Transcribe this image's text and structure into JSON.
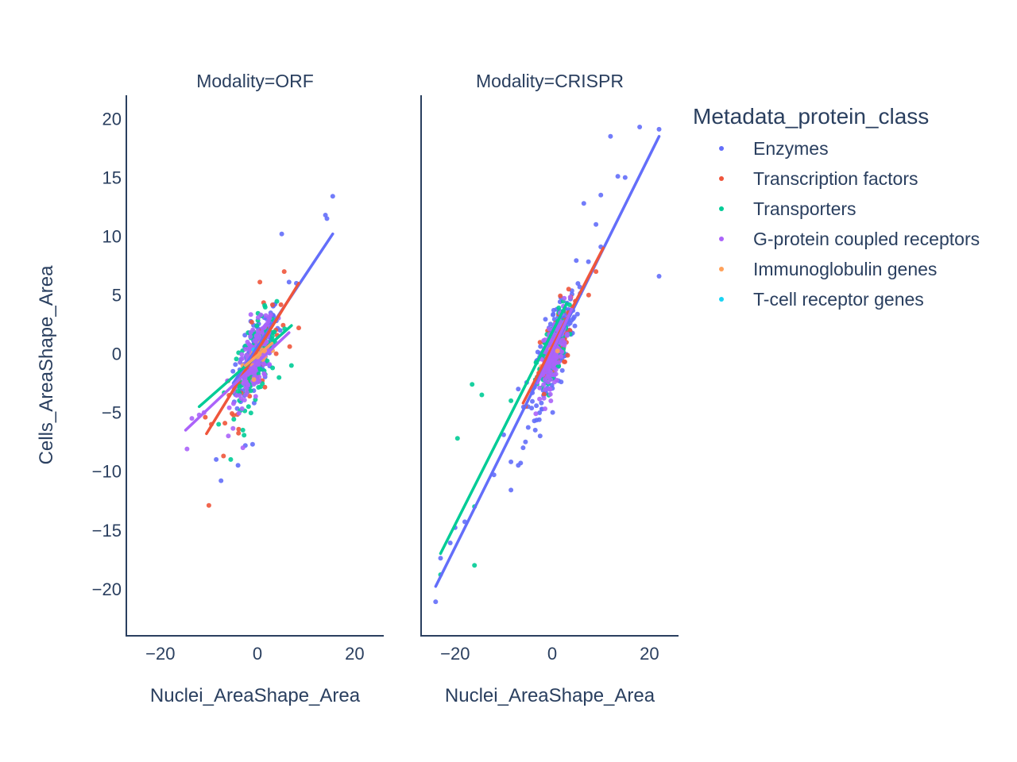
{
  "chart_data": {
    "type": "scatter",
    "ylabel": "Cells_AreaShape_Area",
    "xlabel": "Nuclei_AreaShape_Area",
    "x_ticks": [
      -20,
      0,
      20
    ],
    "y_ticks": [
      20,
      15,
      10,
      5,
      0,
      -5,
      -10,
      -15,
      -20
    ],
    "x_tick_labels": [
      "−20",
      "0",
      "20"
    ],
    "y_tick_labels": [
      "20",
      "15",
      "10",
      "5",
      "0",
      "−5",
      "−10",
      "−15",
      "−20"
    ],
    "xlim": [
      -27,
      26
    ],
    "ylim": [
      -24,
      22
    ],
    "grid": false,
    "legend": {
      "title": "Metadata_protein_class",
      "placement": "right",
      "entries": [
        "Enzymes",
        "Transcription factors",
        "Transporters",
        "G-protein coupled receptors",
        "Immunoglobulin genes",
        "T-cell receptor genes"
      ]
    },
    "colors": {
      "Enzymes": "#636efa",
      "Transcription factors": "#ef553b",
      "Transporters": "#00cc96",
      "G-protein coupled receptors": "#ab63fa",
      "Immunoglobulin genes": "#ffa15a",
      "T-cell receptor genes": "#19d3f3"
    },
    "panels": [
      {
        "title": "Modality=ORF",
        "trendlines": [
          {
            "series": "Enzymes",
            "x": [
              -5,
              15.5
            ],
            "y": [
              -2.5,
              10.2
            ]
          },
          {
            "series": "Transcription factors",
            "x": [
              -10.5,
              8.5
            ],
            "y": [
              -6.8,
              6.0
            ]
          },
          {
            "series": "Transporters",
            "x": [
              -12,
              7
            ],
            "y": [
              -4.5,
              2.4
            ]
          },
          {
            "series": "G-protein coupled receptors",
            "x": [
              -14.8,
              6.5
            ],
            "y": [
              -6.5,
              1.8
            ]
          },
          {
            "series": "Immunoglobulin genes",
            "x": [
              -2.5,
              3.0
            ],
            "y": [
              -1.0,
              0.9
            ]
          }
        ],
        "clusters": [
          {
            "series": "Enzymes",
            "n": 160,
            "cx": 0,
            "cy": 0,
            "sx": 2.2,
            "sy": 2.4,
            "slope": 0.6,
            "extra": [
              [
                15.5,
                13.4
              ],
              [
                14,
                11.8
              ],
              [
                14.3,
                11.5
              ],
              [
                5,
                10.2
              ],
              [
                8,
                6
              ],
              [
                -7.5,
                -10.8
              ],
              [
                -8.5,
                -9
              ],
              [
                6.5,
                6.1
              ],
              [
                -2.5,
                -7.8
              ],
              [
                -1,
                -7.7
              ],
              [
                -4,
                -9.5
              ]
            ]
          },
          {
            "series": "Transcription factors",
            "n": 60,
            "cx": -1,
            "cy": -1,
            "sx": 2.8,
            "sy": 2.8,
            "slope": 0.65,
            "extra": [
              [
                -10,
                -12.9
              ],
              [
                0.5,
                6.1
              ],
              [
                5.5,
                7
              ],
              [
                -7,
                -8.7
              ],
              [
                -9.5,
                -6
              ],
              [
                8.5,
                2.2
              ]
            ]
          },
          {
            "series": "Transporters",
            "n": 130,
            "cx": -0.5,
            "cy": -0.5,
            "sx": 2.2,
            "sy": 2.6,
            "slope": 0.5,
            "extra": [
              [
                -5.5,
                -9
              ],
              [
                -3,
                -6.5
              ],
              [
                7,
                -1
              ],
              [
                -8,
                -6
              ]
            ]
          },
          {
            "series": "G-protein coupled receptors",
            "n": 170,
            "cx": -0.5,
            "cy": -0.5,
            "sx": 2.0,
            "sy": 2.2,
            "slope": 0.55,
            "extra": [
              [
                -14.5,
                -8.1
              ],
              [
                -13.5,
                -5.5
              ],
              [
                -12,
                -5.2
              ],
              [
                -6,
                -7
              ],
              [
                -3,
                -8
              ],
              [
                -11,
                -5
              ]
            ]
          },
          {
            "series": "Immunoglobulin genes",
            "n": 14,
            "cx": 0,
            "cy": 0,
            "sx": 1.3,
            "sy": 0.8,
            "slope": 0.35,
            "extra": []
          },
          {
            "series": "T-cell receptor genes",
            "n": 2,
            "cx": 0,
            "cy": 0,
            "sx": 0.8,
            "sy": 0.8,
            "slope": 0.3,
            "extra": []
          }
        ]
      },
      {
        "title": "Modality=CRISPR",
        "trendlines": [
          {
            "series": "Enzymes",
            "x": [
              -24,
              22
            ],
            "y": [
              -19.8,
              18.5
            ]
          },
          {
            "series": "Transcription factors",
            "x": [
              -6,
              10.5
            ],
            "y": [
              -4.2,
              9
            ]
          },
          {
            "series": "Transporters",
            "x": [
              -23,
              3
            ],
            "y": [
              -17,
              4.3
            ]
          },
          {
            "series": "G-protein coupled receptors",
            "x": [
              -3,
              4
            ],
            "y": [
              -2.5,
              3.8
            ]
          }
        ],
        "clusters": [
          {
            "series": "Enzymes",
            "n": 200,
            "cx": 0.5,
            "cy": 0.5,
            "sx": 2.2,
            "sy": 3.0,
            "slope": 0.85,
            "extra": [
              [
                22,
                19.1
              ],
              [
                18,
                19.3
              ],
              [
                12,
                18.5
              ],
              [
                13.5,
                15.1
              ],
              [
                15,
                15
              ],
              [
                10,
                13.5
              ],
              [
                6.5,
                12.8
              ],
              [
                9,
                11
              ],
              [
                10,
                9.1
              ],
              [
                22,
                6.6
              ],
              [
                -24,
                -21.1
              ],
              [
                -23,
                -17.4
              ],
              [
                -21,
                -16.1
              ],
              [
                -20,
                -14.8
              ],
              [
                -18,
                -14.3
              ],
              [
                -12,
                -10.3
              ],
              [
                -8.5,
                -11.6
              ],
              [
                -7,
                -9.5
              ],
              [
                -8.5,
                -9.2
              ],
              [
                -6.5,
                -9.3
              ],
              [
                -10,
                -6.9
              ],
              [
                -6,
                -8
              ],
              [
                -5.5,
                -7.5
              ],
              [
                -3.5,
                -6.5
              ],
              [
                -2.5,
                -7
              ],
              [
                -5,
                -4.5
              ],
              [
                -7,
                -3
              ],
              [
                -4,
                -3
              ]
            ]
          },
          {
            "series": "Transcription factors",
            "n": 60,
            "cx": 0.5,
            "cy": 0.5,
            "sx": 1.8,
            "sy": 2.5,
            "slope": 0.8,
            "extra": [
              [
                -5.5,
                -4.5
              ],
              [
                7.5,
                5
              ],
              [
                9,
                7
              ]
            ]
          },
          {
            "series": "Transporters",
            "n": 110,
            "cx": 0,
            "cy": 0,
            "sx": 1.6,
            "sy": 2.2,
            "slope": 0.8,
            "extra": [
              [
                -16,
                -18
              ],
              [
                -23,
                -18.8
              ],
              [
                -16,
                -13
              ],
              [
                -19.5,
                -7.2
              ],
              [
                -16.5,
                -2.6
              ],
              [
                -14.5,
                -3.5
              ],
              [
                -8.5,
                -4
              ]
            ]
          },
          {
            "series": "G-protein coupled receptors",
            "n": 170,
            "cx": 0.3,
            "cy": 0.3,
            "sx": 1.3,
            "sy": 2.0,
            "slope": 0.9,
            "extra": []
          },
          {
            "series": "Immunoglobulin genes",
            "n": 3,
            "cx": 0,
            "cy": 0,
            "sx": 0.6,
            "sy": 0.6,
            "slope": 0.5,
            "extra": []
          }
        ]
      }
    ]
  }
}
